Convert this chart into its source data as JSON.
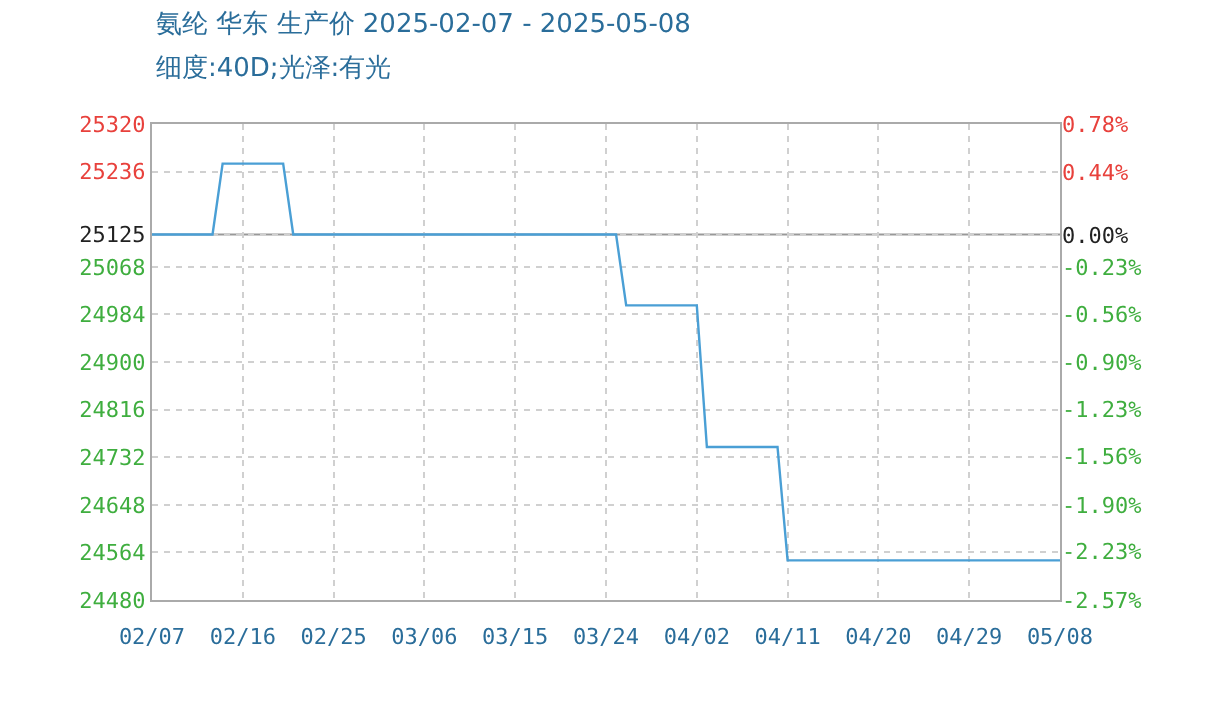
{
  "chart_data": {
    "type": "step",
    "title": "氨纶 华东 生产价 2025-02-07 - 2025-05-08",
    "subtitle": "细度:40D;光泽:有光",
    "x": [
      "2025-02-07",
      "2025-02-13",
      "2025-02-14",
      "2025-02-20",
      "2025-02-21",
      "2025-03-25",
      "2025-03-26",
      "2025-04-02",
      "2025-04-03",
      "2025-04-10",
      "2025-04-11",
      "2025-05-08"
    ],
    "series": [
      {
        "color": "#4a9fd5",
        "values": [
          25125,
          25125,
          25250,
          25250,
          25125,
          25125,
          25000,
          25000,
          24750,
          24750,
          24550,
          24550
        ]
      }
    ],
    "xlim": [
      "2025-02-07",
      "2025-05-08"
    ],
    "xticks": [
      {
        "value": "2025-02-07",
        "label": "02/07"
      },
      {
        "value": "2025-02-16",
        "label": "02/16"
      },
      {
        "value": "2025-02-25",
        "label": "02/25"
      },
      {
        "value": "2025-03-06",
        "label": "03/06"
      },
      {
        "value": "2025-03-15",
        "label": "03/15"
      },
      {
        "value": "2025-03-24",
        "label": "03/24"
      },
      {
        "value": "2025-04-02",
        "label": "04/02"
      },
      {
        "value": "2025-04-11",
        "label": "04/11"
      },
      {
        "value": "2025-04-20",
        "label": "04/20"
      },
      {
        "value": "2025-04-29",
        "label": "04/29"
      },
      {
        "value": "2025-05-08",
        "label": "05/08"
      }
    ],
    "ylim": [
      24480,
      25320
    ],
    "yticks": [
      24480,
      24564,
      24648,
      24732,
      24816,
      24900,
      24984,
      25068,
      25125,
      25236,
      25320
    ],
    "y2lim": [
      -2.57,
      0.78
    ],
    "y2ticks": [
      {
        "value": -2.57,
        "label": "-2.57%"
      },
      {
        "value": -2.23,
        "label": "-2.23%"
      },
      {
        "value": -1.9,
        "label": "-1.90%"
      },
      {
        "value": -1.56,
        "label": "-1.56%"
      },
      {
        "value": -1.23,
        "label": "-1.23%"
      },
      {
        "value": -0.9,
        "label": "-0.90%"
      },
      {
        "value": -0.56,
        "label": "-0.56%"
      },
      {
        "value": -0.23,
        "label": "-0.23%"
      },
      {
        "value": 0,
        "label": "0.00%"
      },
      {
        "value": 0.44,
        "label": "0.44%"
      },
      {
        "value": 0.78,
        "label": "0.78%"
      }
    ],
    "ref_lines": [
      {
        "axis": "y",
        "value": 25125,
        "color": "#999999"
      }
    ],
    "grid": true,
    "line_style": "solid",
    "marker": "none"
  }
}
